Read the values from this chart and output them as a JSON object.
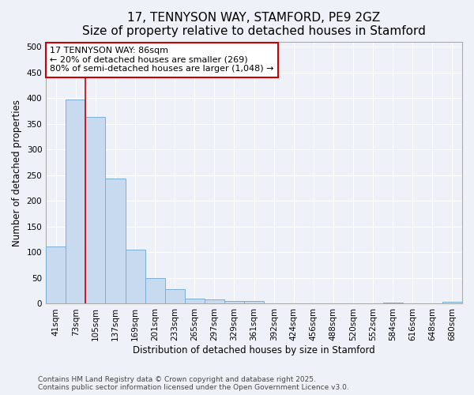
{
  "title_line1": "17, TENNYSON WAY, STAMFORD, PE9 2GZ",
  "title_line2": "Size of property relative to detached houses in Stamford",
  "xlabel": "Distribution of detached houses by size in Stamford",
  "ylabel": "Number of detached properties",
  "categories": [
    "41sqm",
    "73sqm",
    "105sqm",
    "137sqm",
    "169sqm",
    "201sqm",
    "233sqm",
    "265sqm",
    "297sqm",
    "329sqm",
    "361sqm",
    "392sqm",
    "424sqm",
    "456sqm",
    "488sqm",
    "520sqm",
    "552sqm",
    "584sqm",
    "616sqm",
    "648sqm",
    "680sqm"
  ],
  "values": [
    112,
    398,
    363,
    243,
    105,
    50,
    28,
    10,
    8,
    6,
    6,
    0,
    0,
    0,
    0,
    0,
    0,
    3,
    0,
    0,
    4
  ],
  "bar_color": "#c8daf0",
  "bar_edge_color": "#7bafd4",
  "property_line_x": 1.5,
  "annotation_line1": "17 TENNYSON WAY: 86sqm",
  "annotation_line2": "← 20% of detached houses are smaller (269)",
  "annotation_line3": "80% of semi-detached houses are larger (1,048) →",
  "annotation_box_color": "#ffffff",
  "annotation_box_edge": "#cc0000",
  "vline_color": "#cc0000",
  "ylim": [
    0,
    510
  ],
  "yticks": [
    0,
    50,
    100,
    150,
    200,
    250,
    300,
    350,
    400,
    450,
    500
  ],
  "footer": "Contains HM Land Registry data © Crown copyright and database right 2025.\nContains public sector information licensed under the Open Government Licence v3.0.",
  "background_color": "#eef2f8",
  "grid_color": "#ffffff",
  "title_fontsize": 11,
  "axis_label_fontsize": 8.5,
  "tick_fontsize": 7.5,
  "annotation_fontsize": 8,
  "footer_fontsize": 6.5
}
